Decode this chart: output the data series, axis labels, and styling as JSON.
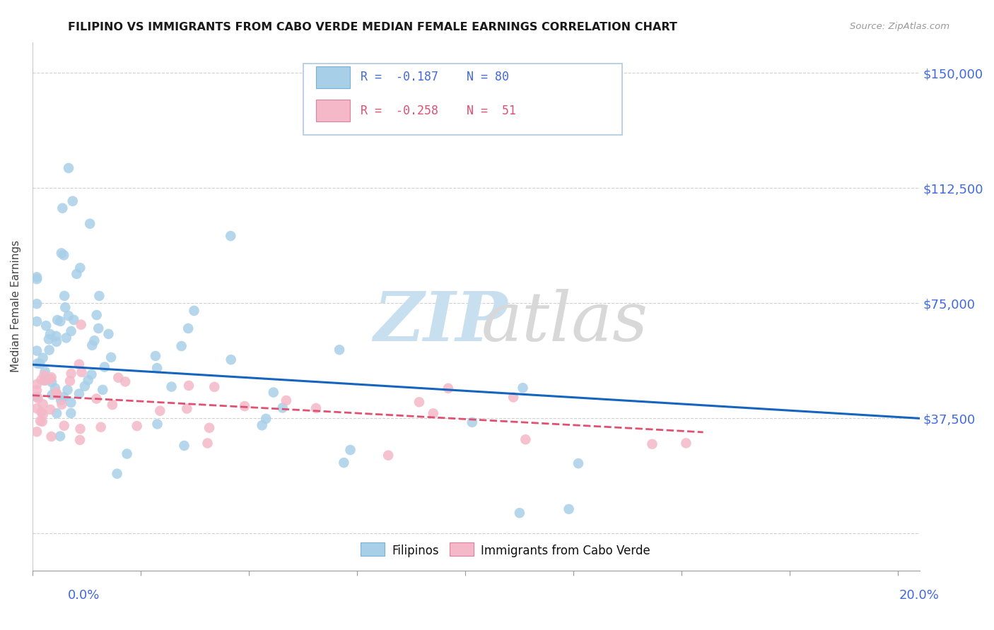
{
  "title": "FILIPINO VS IMMIGRANTS FROM CABO VERDE MEDIAN FEMALE EARNINGS CORRELATION CHART",
  "source": "Source: ZipAtlas.com",
  "ylabel": "Median Female Earnings",
  "ytick_vals": [
    0,
    37500,
    75000,
    112500,
    150000
  ],
  "ytick_labels": [
    "",
    "$37,500",
    "$75,000",
    "$112,500",
    "$150,000"
  ],
  "xlim": [
    0.0,
    0.205
  ],
  "ylim": [
    -12000,
    160000
  ],
  "color_blue": "#a8cfe8",
  "color_pink": "#f4b8c8",
  "color_blue_line": "#1565c0",
  "color_pink_line": "#e05070",
  "color_axis": "#4169E1",
  "legend_r1": "R = -0.187",
  "legend_n1": "N = 80",
  "legend_r2": "R = -0.258",
  "legend_n2": "N =  51",
  "blue_line_y0": 55000,
  "blue_line_y1": 37500,
  "pink_line_y0": 45000,
  "pink_line_y1": 33000,
  "pink_line_x1": 0.155,
  "watermark_zip_color": "#c8dff0",
  "watermark_atlas_color": "#d8d8d8"
}
